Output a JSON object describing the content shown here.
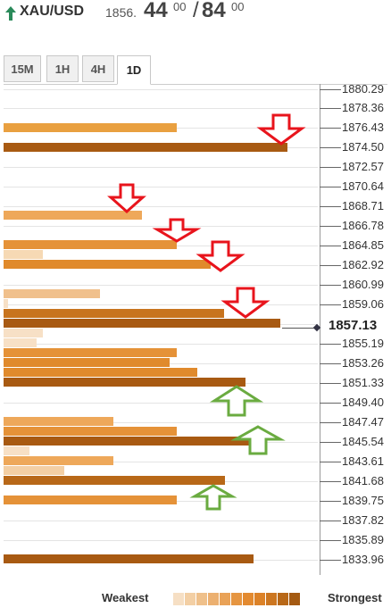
{
  "header": {
    "symbol": "XAU/USD",
    "price_base": "1856.",
    "price_big1": "44",
    "price_small1": "00",
    "separator": "/",
    "price_big2": "84",
    "price_small2": "00"
  },
  "tabs": [
    {
      "label": "15M",
      "active": false
    },
    {
      "label": "1H",
      "active": false
    },
    {
      "label": "4H",
      "active": false
    },
    {
      "label": "1D",
      "active": true
    }
  ],
  "levels": [
    "1880.29",
    "1878.36",
    "1876.43",
    "1874.50",
    "1872.57",
    "1870.64",
    "1868.71",
    "1866.78",
    "1864.85",
    "1862.92",
    "1860.99",
    "1859.06",
    "1857.13",
    "1855.19",
    "1853.26",
    "1851.33",
    "1849.40",
    "1847.47",
    "1845.54",
    "1843.61",
    "1841.68",
    "1839.75",
    "1837.82",
    "1835.89",
    "1833.96"
  ],
  "current_price": "1857.13",
  "legend": {
    "weakest": "Weakest",
    "strongest": "Strongest",
    "colors": [
      "#f6dfc4",
      "#f3cfa4",
      "#efc08a",
      "#ecb070",
      "#e9a257",
      "#e69540",
      "#e38a30",
      "#dc8228",
      "#cc7620",
      "#b86818",
      "#a45a12"
    ]
  },
  "colors": {
    "arrow_down": "#e8141c",
    "arrow_up": "#6aab40"
  }
}
